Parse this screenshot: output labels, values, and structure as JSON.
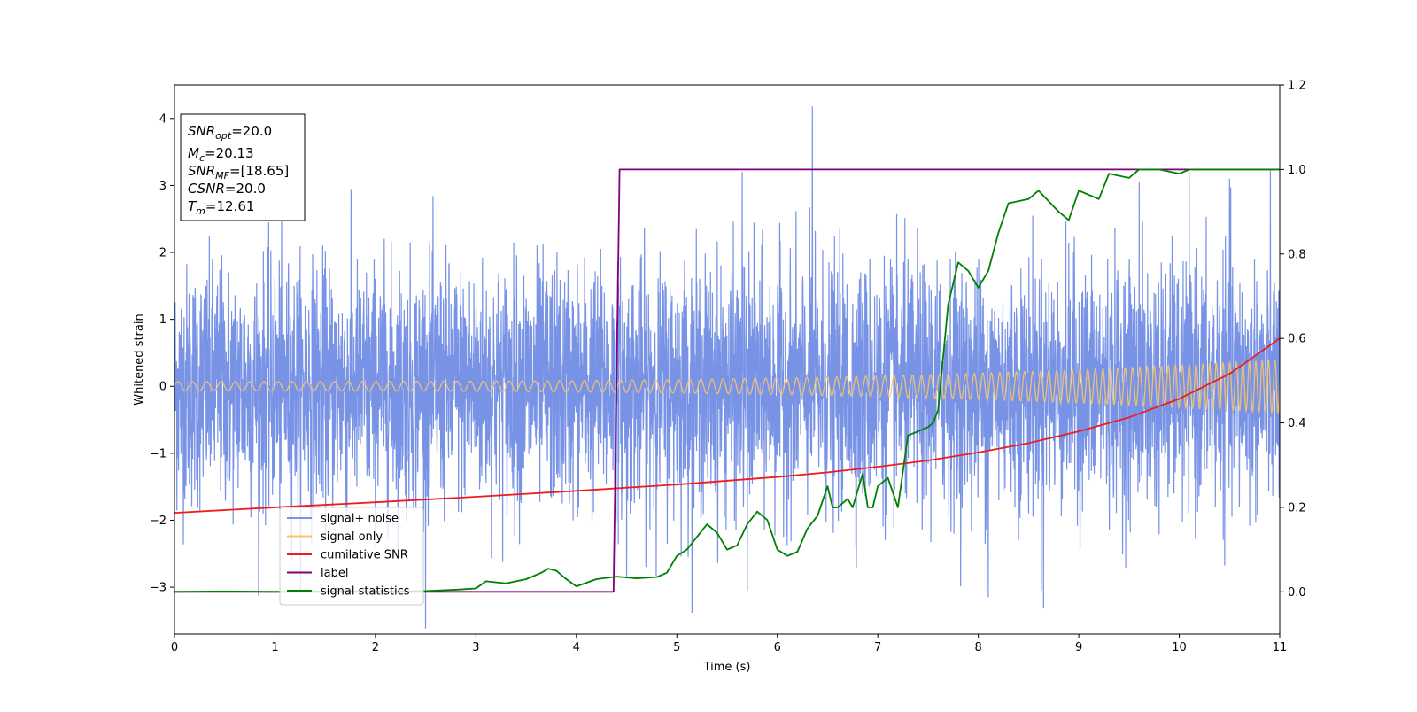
{
  "chart_data": {
    "type": "line",
    "xlabel": "Time (s)",
    "ylabel": "Whitened strain",
    "xlim": [
      0,
      11
    ],
    "ylim": [
      -3.7,
      4.5
    ],
    "y2lim": [
      -0.1,
      1.2
    ],
    "x_ticks": [
      "0",
      "1",
      "2",
      "3",
      "4",
      "5",
      "6",
      "7",
      "8",
      "9",
      "10",
      "11"
    ],
    "y_ticks": [
      "−3",
      "−2",
      "−1",
      "0",
      "1",
      "2",
      "3",
      "4"
    ],
    "y2_ticks": [
      "0.0",
      "0.2",
      "0.4",
      "0.6",
      "0.8",
      "1.0",
      "1.2"
    ],
    "grid": false,
    "legend_position": "lower-left",
    "info_box": {
      "position": "upper-left",
      "lines": [
        {
          "main": "SNR",
          "sub": "opt",
          "value": "=20.0"
        },
        {
          "main": "M",
          "sub": "c",
          "value": "=20.13"
        },
        {
          "main": "SNR",
          "sub": "MF",
          "value": "=[18.65]"
        },
        {
          "main": "CSNR",
          "sub": "",
          "value": "=20.0"
        },
        {
          "main": "T",
          "sub": "m",
          "value": "=12.61"
        }
      ]
    },
    "series": [
      {
        "name": "signal+ noise",
        "color": "#7893e6",
        "axis": "left",
        "description": "whitened strain, approximately unit-variance noise spanning about -3.3 to 4.2 with peak at t=6.35",
        "spikes": [
          {
            "x": 6.35,
            "y": 4.18
          },
          {
            "x": 8.65,
            "y": -3.32
          },
          {
            "x": 8.1,
            "y": -3.15
          },
          {
            "x": 5.7,
            "y": -3.05
          },
          {
            "x": 4.5,
            "y": -2.85
          },
          {
            "x": 5.65,
            "y": 3.2
          },
          {
            "x": 9.6,
            "y": 3.05
          },
          {
            "x": 10.5,
            "y": 3.1
          }
        ]
      },
      {
        "name": "signal only",
        "color": "#f7c46a",
        "axis": "left",
        "description": "chirp waveform, amplitude rising from about 0.07 at t=0 to about 0.4 at t=11",
        "amplitude_start": 0.07,
        "amplitude_end": 0.4,
        "frequency_start_hz": 7,
        "frequency_end_hz": 16
      },
      {
        "name": "cumilative SNR",
        "color": "#ee1c1c",
        "axis": "right",
        "x": [
          0,
          1,
          2,
          3,
          4,
          5,
          6,
          6.5,
          7,
          7.5,
          8,
          8.5,
          9,
          9.5,
          10,
          10.5,
          11
        ],
        "y": [
          0.187,
          0.2,
          0.212,
          0.225,
          0.239,
          0.254,
          0.272,
          0.283,
          0.296,
          0.311,
          0.33,
          0.352,
          0.38,
          0.413,
          0.457,
          0.516,
          0.6
        ]
      },
      {
        "name": "label",
        "color": "#800080",
        "axis": "right",
        "x": [
          0,
          4.37,
          4.43,
          11
        ],
        "y": [
          0,
          0,
          1,
          1
        ]
      },
      {
        "name": "signal statistics",
        "color": "#008000",
        "axis": "right",
        "x": [
          0,
          0.5,
          1,
          1.5,
          2,
          2.5,
          2.8,
          3.0,
          3.1,
          3.3,
          3.5,
          3.65,
          3.72,
          3.8,
          3.9,
          4.0,
          4.2,
          4.4,
          4.6,
          4.8,
          4.9,
          5.0,
          5.1,
          5.2,
          5.3,
          5.4,
          5.5,
          5.6,
          5.7,
          5.8,
          5.9,
          6.0,
          6.1,
          6.2,
          6.3,
          6.4,
          6.5,
          6.55,
          6.6,
          6.7,
          6.75,
          6.8,
          6.85,
          6.9,
          6.95,
          7.0,
          7.1,
          7.2,
          7.3,
          7.4,
          7.5,
          7.55,
          7.6,
          7.7,
          7.8,
          7.9,
          8.0,
          8.1,
          8.2,
          8.3,
          8.5,
          8.6,
          8.8,
          8.9,
          9.0,
          9.1,
          9.2,
          9.3,
          9.5,
          9.6,
          9.7,
          9.8,
          10.0,
          10.1,
          10.3,
          10.5,
          10.8,
          11.0
        ],
        "y": [
          0.0,
          0.001,
          0.0,
          0.001,
          0.0,
          0.002,
          0.005,
          0.008,
          0.025,
          0.02,
          0.03,
          0.045,
          0.055,
          0.05,
          0.03,
          0.013,
          0.03,
          0.036,
          0.032,
          0.035,
          0.045,
          0.085,
          0.1,
          0.13,
          0.16,
          0.14,
          0.1,
          0.11,
          0.16,
          0.19,
          0.17,
          0.1,
          0.085,
          0.095,
          0.15,
          0.18,
          0.25,
          0.2,
          0.2,
          0.22,
          0.2,
          0.24,
          0.28,
          0.2,
          0.2,
          0.25,
          0.27,
          0.2,
          0.37,
          0.38,
          0.39,
          0.4,
          0.43,
          0.68,
          0.78,
          0.76,
          0.72,
          0.76,
          0.85,
          0.92,
          0.93,
          0.95,
          0.9,
          0.88,
          0.95,
          0.94,
          0.93,
          0.99,
          0.98,
          1.0,
          1.0,
          1.0,
          0.99,
          1.0,
          1.0,
          1.0,
          1.0,
          1.0
        ]
      }
    ]
  }
}
